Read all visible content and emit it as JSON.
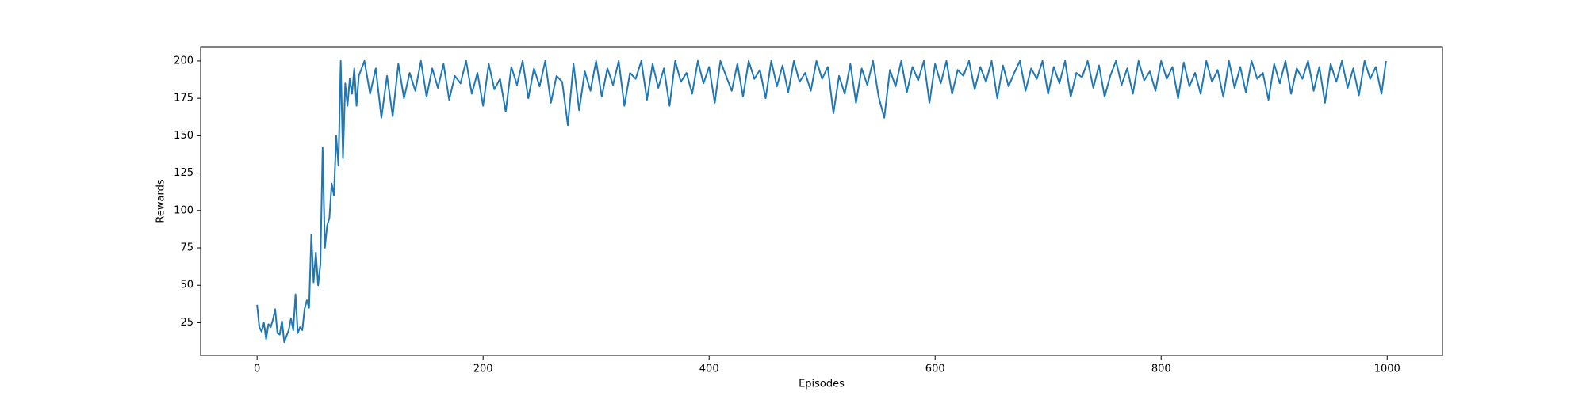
{
  "chart_data": {
    "type": "line",
    "x_label": "Episodes",
    "y_label": "Rewards",
    "xlim": [
      -49.95,
      1048.95
    ],
    "ylim": [
      3,
      209.5
    ],
    "xticks": [
      0,
      200,
      400,
      600,
      800,
      1000
    ],
    "yticks": [
      25,
      50,
      75,
      100,
      125,
      150,
      175,
      200
    ],
    "grid": false,
    "x": [
      0,
      2,
      4,
      6,
      8,
      10,
      12,
      14,
      16,
      18,
      20,
      22,
      24,
      26,
      28,
      30,
      32,
      34,
      36,
      38,
      40,
      42,
      44,
      46,
      48,
      50,
      52,
      54,
      56,
      58,
      60,
      62,
      64,
      66,
      68,
      70,
      72,
      74,
      76,
      78,
      80,
      82,
      84,
      86,
      88,
      90,
      95,
      100,
      105,
      110,
      115,
      120,
      125,
      130,
      135,
      140,
      145,
      150,
      155,
      160,
      165,
      170,
      175,
      180,
      185,
      190,
      195,
      200,
      205,
      210,
      215,
      220,
      225,
      230,
      235,
      240,
      245,
      250,
      255,
      260,
      265,
      270,
      275,
      280,
      285,
      290,
      295,
      300,
      305,
      310,
      315,
      320,
      325,
      330,
      335,
      340,
      345,
      350,
      355,
      360,
      365,
      370,
      375,
      380,
      385,
      390,
      395,
      400,
      405,
      410,
      415,
      420,
      425,
      430,
      435,
      440,
      445,
      450,
      455,
      460,
      465,
      470,
      475,
      480,
      485,
      490,
      495,
      500,
      505,
      510,
      515,
      520,
      525,
      530,
      535,
      540,
      545,
      550,
      555,
      560,
      565,
      570,
      575,
      580,
      585,
      590,
      595,
      600,
      605,
      610,
      615,
      620,
      625,
      630,
      635,
      640,
      645,
      650,
      655,
      660,
      665,
      670,
      675,
      680,
      685,
      690,
      695,
      700,
      705,
      710,
      715,
      720,
      725,
      730,
      735,
      740,
      745,
      750,
      755,
      760,
      765,
      770,
      775,
      780,
      785,
      790,
      795,
      800,
      805,
      810,
      815,
      820,
      825,
      830,
      835,
      840,
      845,
      850,
      855,
      860,
      865,
      870,
      875,
      880,
      885,
      890,
      895,
      900,
      905,
      910,
      915,
      920,
      925,
      930,
      935,
      940,
      945,
      950,
      955,
      960,
      965,
      970,
      975,
      980,
      985,
      990,
      995,
      999
    ],
    "series": [
      {
        "name": "Rewards",
        "color": "#1f77b4",
        "values": [
          37,
          22,
          19,
          25,
          14,
          24,
          22,
          27,
          34,
          18,
          17,
          26,
          12,
          16,
          20,
          28,
          20,
          44,
          18,
          22,
          20,
          34,
          40,
          35,
          84,
          52,
          72,
          50,
          64,
          142,
          75,
          90,
          95,
          118,
          110,
          150,
          130,
          200,
          135,
          185,
          170,
          188,
          178,
          195,
          170,
          190,
          200,
          178,
          195,
          162,
          190,
          163,
          198,
          175,
          192,
          180,
          200,
          176,
          195,
          182,
          198,
          174,
          190,
          185,
          200,
          178,
          192,
          170,
          198,
          181,
          188,
          166,
          196,
          184,
          200,
          175,
          195,
          183,
          200,
          172,
          190,
          186,
          157,
          198,
          167,
          193,
          180,
          200,
          176,
          195,
          184,
          200,
          170,
          192,
          188,
          200,
          174,
          198,
          182,
          195,
          170,
          200,
          186,
          192,
          178,
          200,
          185,
          196,
          172,
          200,
          190,
          180,
          198,
          176,
          200,
          188,
          194,
          175,
          200,
          183,
          197,
          179,
          200,
          186,
          192,
          180,
          200,
          188,
          196,
          165,
          190,
          178,
          198,
          172,
          195,
          184,
          200,
          176,
          162,
          194,
          183,
          200,
          179,
          196,
          187,
          200,
          172,
          198,
          185,
          200,
          178,
          194,
          190,
          200,
          181,
          196,
          186,
          200,
          175,
          197,
          183,
          192,
          200,
          180,
          195,
          188,
          200,
          178,
          196,
          185,
          200,
          176,
          192,
          189,
          200,
          182,
          197,
          176,
          190,
          200,
          184,
          195,
          178,
          200,
          187,
          193,
          180,
          200,
          188,
          196,
          175,
          199,
          183,
          192,
          178,
          200,
          186,
          194,
          176,
          200,
          182,
          196,
          179,
          200,
          188,
          192,
          174,
          198,
          185,
          200,
          178,
          195,
          188,
          200,
          180,
          196,
          172,
          198,
          186,
          200,
          182,
          195,
          177,
          200,
          188,
          196,
          178,
          200
        ]
      }
    ]
  }
}
